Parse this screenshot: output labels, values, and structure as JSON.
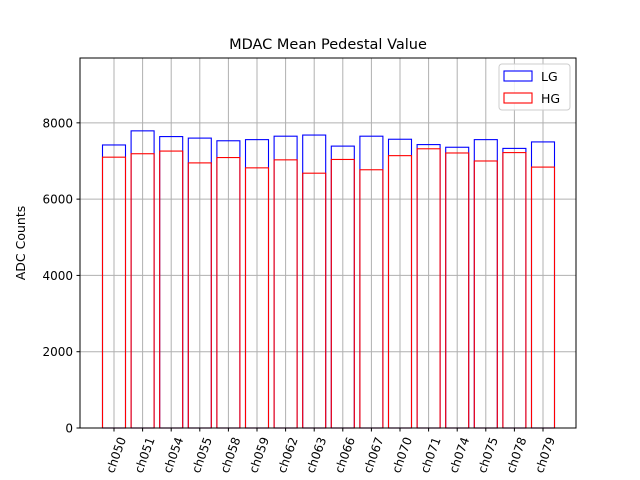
{
  "chart_data": {
    "type": "bar",
    "title": "MDAC Mean Pedestal Value",
    "xlabel": "",
    "ylabel": "ADC Counts",
    "ylim": [
      0,
      9700
    ],
    "yticks": [
      0,
      2000,
      4000,
      6000,
      8000
    ],
    "grid": true,
    "legend_position": "top-right",
    "categories": [
      "ch050",
      "ch051",
      "ch054",
      "ch055",
      "ch058",
      "ch059",
      "ch062",
      "ch063",
      "ch066",
      "ch067",
      "ch070",
      "ch071",
      "ch074",
      "ch075",
      "ch078",
      "ch079"
    ],
    "series": [
      {
        "name": "LG",
        "color": "#0000ff",
        "values": [
          7420,
          7790,
          7640,
          7600,
          7530,
          7560,
          7650,
          7680,
          7390,
          7650,
          7570,
          7430,
          7360,
          7560,
          7330,
          7500
        ]
      },
      {
        "name": "HG",
        "color": "#ff0000",
        "values": [
          7100,
          7190,
          7260,
          6950,
          7090,
          6820,
          7030,
          6680,
          7040,
          6770,
          7140,
          7320,
          7210,
          7000,
          7220,
          6840
        ]
      }
    ]
  }
}
